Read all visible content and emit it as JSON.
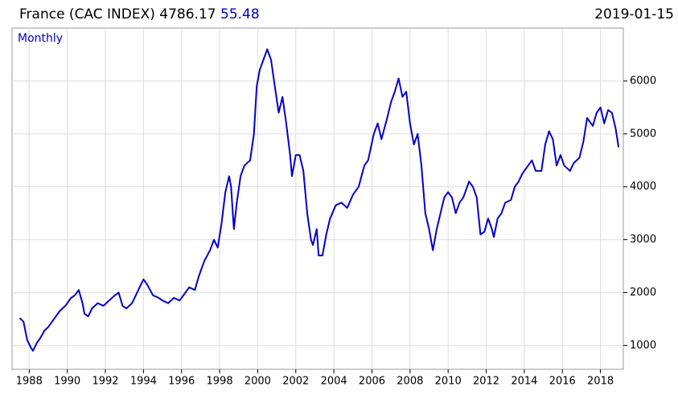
{
  "chart_data": {
    "type": "line",
    "title": "France (CAC INDEX)",
    "last_value": "4786.17",
    "change": "55.48",
    "date": "2019-01-15",
    "period": "Monthly",
    "xlim": [
      1987.1,
      2019.2
    ],
    "xticks": [
      1988,
      1990,
      1992,
      1994,
      1996,
      1998,
      2000,
      2002,
      2004,
      2006,
      2008,
      2010,
      2012,
      2014,
      2016,
      2018
    ],
    "ylim": [
      550,
      7000
    ],
    "yticks": [
      1000,
      2000,
      3000,
      4000,
      5000,
      6000
    ],
    "y_axis_side": "right",
    "grid": true,
    "series": [
      {
        "name": "CAC INDEX",
        "color": "#0000cc",
        "x": [
          1987.5,
          1987.7,
          1987.9,
          1988.1,
          1988.2,
          1988.4,
          1988.6,
          1988.8,
          1989.0,
          1989.3,
          1989.6,
          1989.9,
          1990.2,
          1990.4,
          1990.6,
          1990.8,
          1990.9,
          1991.1,
          1991.3,
          1991.6,
          1991.9,
          1992.2,
          1992.5,
          1992.7,
          1992.9,
          1993.1,
          1993.4,
          1993.6,
          1993.8,
          1994.0,
          1994.2,
          1994.5,
          1994.8,
          1995.0,
          1995.3,
          1995.6,
          1995.9,
          1996.2,
          1996.4,
          1996.7,
          1996.9,
          1997.2,
          1997.5,
          1997.7,
          1997.9,
          1998.1,
          1998.3,
          1998.5,
          1998.6,
          1998.75,
          1998.9,
          1999.1,
          1999.3,
          1999.6,
          1999.8,
          1999.95,
          2000.1,
          2000.3,
          2000.5,
          2000.7,
          2000.9,
          2001.1,
          2001.3,
          2001.5,
          2001.7,
          2001.8,
          2002.0,
          2002.2,
          2002.4,
          2002.6,
          2002.8,
          2002.9,
          2003.1,
          2003.2,
          2003.4,
          2003.6,
          2003.8,
          2004.1,
          2004.4,
          2004.7,
          2005.0,
          2005.3,
          2005.6,
          2005.8,
          2006.1,
          2006.3,
          2006.5,
          2006.8,
          2007.0,
          2007.2,
          2007.4,
          2007.6,
          2007.8,
          2008.0,
          2008.2,
          2008.4,
          2008.6,
          2008.8,
          2009.0,
          2009.2,
          2009.4,
          2009.6,
          2009.8,
          2010.0,
          2010.2,
          2010.4,
          2010.6,
          2010.8,
          2011.1,
          2011.3,
          2011.5,
          2011.7,
          2011.9,
          2012.1,
          2012.3,
          2012.4,
          2012.6,
          2012.8,
          2013.0,
          2013.3,
          2013.5,
          2013.7,
          2013.9,
          2014.2,
          2014.4,
          2014.6,
          2014.9,
          2015.1,
          2015.3,
          2015.5,
          2015.7,
          2015.9,
          2016.1,
          2016.4,
          2016.6,
          2016.9,
          2017.1,
          2017.3,
          2017.6,
          2017.8,
          2018.0,
          2018.2,
          2018.4,
          2018.6,
          2018.8,
          2018.95
        ],
        "values": [
          1520,
          1450,
          1100,
          950,
          900,
          1050,
          1150,
          1280,
          1350,
          1500,
          1650,
          1750,
          1900,
          1950,
          2050,
          1800,
          1600,
          1550,
          1700,
          1800,
          1750,
          1850,
          1950,
          2000,
          1750,
          1700,
          1800,
          1950,
          2100,
          2250,
          2150,
          1950,
          1900,
          1850,
          1800,
          1900,
          1850,
          2000,
          2100,
          2050,
          2300,
          2600,
          2800,
          3000,
          2850,
          3300,
          3900,
          4200,
          4000,
          3200,
          3700,
          4200,
          4400,
          4500,
          5000,
          5900,
          6200,
          6400,
          6600,
          6400,
          5900,
          5400,
          5700,
          5200,
          4600,
          4200,
          4600,
          4600,
          4300,
          3500,
          3000,
          2900,
          3200,
          2700,
          2700,
          3100,
          3400,
          3650,
          3700,
          3600,
          3850,
          4000,
          4400,
          4500,
          5000,
          5200,
          4900,
          5300,
          5600,
          5800,
          6050,
          5700,
          5800,
          5200,
          4800,
          5000,
          4400,
          3500,
          3200,
          2800,
          3200,
          3500,
          3800,
          3900,
          3800,
          3500,
          3700,
          3800,
          4100,
          4000,
          3800,
          3100,
          3150,
          3400,
          3200,
          3050,
          3400,
          3500,
          3700,
          3750,
          4000,
          4100,
          4250,
          4400,
          4500,
          4300,
          4300,
          4800,
          5050,
          4900,
          4400,
          4600,
          4400,
          4300,
          4450,
          4550,
          4850,
          5300,
          5150,
          5400,
          5500,
          5200,
          5450,
          5400,
          5100,
          4750
        ]
      }
    ]
  }
}
